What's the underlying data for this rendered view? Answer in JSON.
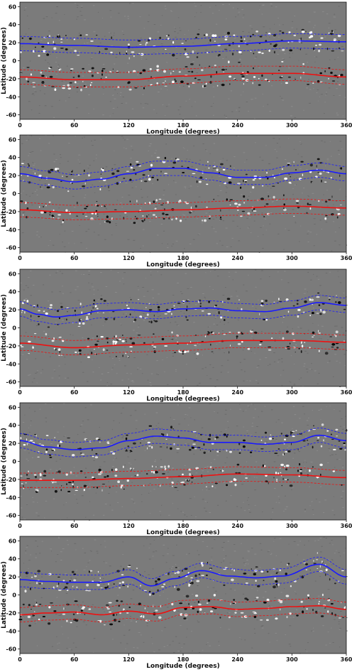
{
  "chart_data": [
    {
      "type": "line",
      "xlabel": "Longitude (degrees)",
      "ylabel": "Latitude (degrees)",
      "xlim": [
        0,
        360
      ],
      "ylim": [
        -65,
        65
      ],
      "xticks": [
        0,
        60,
        120,
        180,
        240,
        300,
        360
      ],
      "yticks": [
        -60,
        -40,
        -20,
        0,
        20,
        40,
        60
      ],
      "series": [
        {
          "color": "#1a1aff",
          "band": 8,
          "x": [
            0,
            60,
            120,
            180,
            240,
            300,
            360
          ],
          "y": [
            19,
            17,
            15,
            16,
            19,
            22,
            21
          ]
        },
        {
          "color": "#ee1111",
          "band": 8,
          "x": [
            0,
            60,
            120,
            180,
            240,
            300,
            360
          ],
          "y": [
            -18,
            -21,
            -21,
            -17,
            -14,
            -14,
            -18
          ]
        }
      ]
    },
    {
      "type": "line",
      "xlabel": "Longitude (degrees)",
      "ylabel": "Latitude (degrees)",
      "xlim": [
        0,
        360
      ],
      "ylim": [
        -65,
        65
      ],
      "xticks": [
        0,
        60,
        120,
        180,
        240,
        300,
        360
      ],
      "yticks": [
        -60,
        -40,
        -20,
        0,
        20,
        40,
        60
      ],
      "series": [
        {
          "color": "#1a1aff",
          "band": 8,
          "x": [
            0,
            30,
            60,
            90,
            120,
            150,
            180,
            210,
            240,
            270,
            300,
            330,
            360
          ],
          "y": [
            22,
            17,
            13,
            16,
            22,
            28,
            28,
            23,
            18,
            18,
            23,
            26,
            22
          ]
        },
        {
          "color": "#ee1111",
          "band": 8,
          "x": [
            0,
            60,
            120,
            180,
            240,
            300,
            360
          ],
          "y": [
            -18,
            -21,
            -20,
            -18,
            -16,
            -14,
            -16
          ]
        }
      ]
    },
    {
      "type": "line",
      "xlabel": "Longitude (degrees)",
      "ylabel": "Latitude (degrees)",
      "xlim": [
        0,
        360
      ],
      "ylim": [
        -65,
        65
      ],
      "xticks": [
        0,
        60,
        120,
        180,
        240,
        300,
        360
      ],
      "yticks": [
        -60,
        -40,
        -20,
        0,
        20,
        40,
        60
      ],
      "series": [
        {
          "color": "#1a1aff",
          "band": 8,
          "x": [
            0,
            20,
            40,
            60,
            90,
            120,
            150,
            180,
            210,
            240,
            270,
            300,
            330,
            360
          ],
          "y": [
            21,
            15,
            12,
            14,
            19,
            20,
            18,
            21,
            22,
            19,
            18,
            22,
            28,
            25
          ]
        },
        {
          "color": "#ee1111",
          "band": 8,
          "x": [
            0,
            60,
            120,
            180,
            240,
            300,
            360
          ],
          "y": [
            -17,
            -22,
            -19,
            -17,
            -14,
            -14,
            -16
          ]
        }
      ]
    },
    {
      "type": "line",
      "xlabel": "Longitude (degrees)",
      "ylabel": "Latitude (degrees)",
      "xlim": [
        0,
        360
      ],
      "ylim": [
        -65,
        65
      ],
      "xticks": [
        0,
        60,
        120,
        180,
        240,
        300,
        360
      ],
      "yticks": [
        -60,
        -40,
        -20,
        0,
        20,
        40,
        60
      ],
      "series": [
        {
          "color": "#1a1aff",
          "band": 8,
          "x": [
            0,
            30,
            60,
            90,
            120,
            150,
            180,
            210,
            240,
            270,
            300,
            330,
            360
          ],
          "y": [
            23,
            16,
            13,
            15,
            23,
            28,
            26,
            21,
            21,
            19,
            21,
            29,
            23
          ]
        },
        {
          "color": "#ee1111",
          "band": 8,
          "x": [
            0,
            60,
            120,
            180,
            240,
            300,
            360
          ],
          "y": [
            -21,
            -21,
            -19,
            -17,
            -14,
            -15,
            -18
          ]
        }
      ]
    },
    {
      "type": "line",
      "xlabel": "Longitude (degrees)",
      "ylabel": "Latitude (degrees)",
      "xlim": [
        0,
        360
      ],
      "ylim": [
        -65,
        65
      ],
      "xticks": [
        0,
        60,
        120,
        180,
        240,
        300,
        360
      ],
      "yticks": [
        -60,
        -40,
        -20,
        0,
        20,
        40,
        60
      ],
      "series": [
        {
          "color": "#1a1aff",
          "band": 8,
          "x": [
            0,
            30,
            60,
            90,
            120,
            145,
            170,
            200,
            230,
            260,
            290,
            330,
            360
          ],
          "y": [
            17,
            15,
            14,
            14,
            20,
            10,
            18,
            27,
            21,
            19,
            21,
            34,
            20
          ]
        },
        {
          "color": "#ee1111",
          "band": 8,
          "x": [
            0,
            30,
            60,
            90,
            120,
            150,
            180,
            210,
            240,
            270,
            300,
            330,
            360
          ],
          "y": [
            -22,
            -20,
            -19,
            -22,
            -18,
            -21,
            -14,
            -13,
            -16,
            -15,
            -13,
            -12,
            -16
          ]
        }
      ]
    }
  ]
}
